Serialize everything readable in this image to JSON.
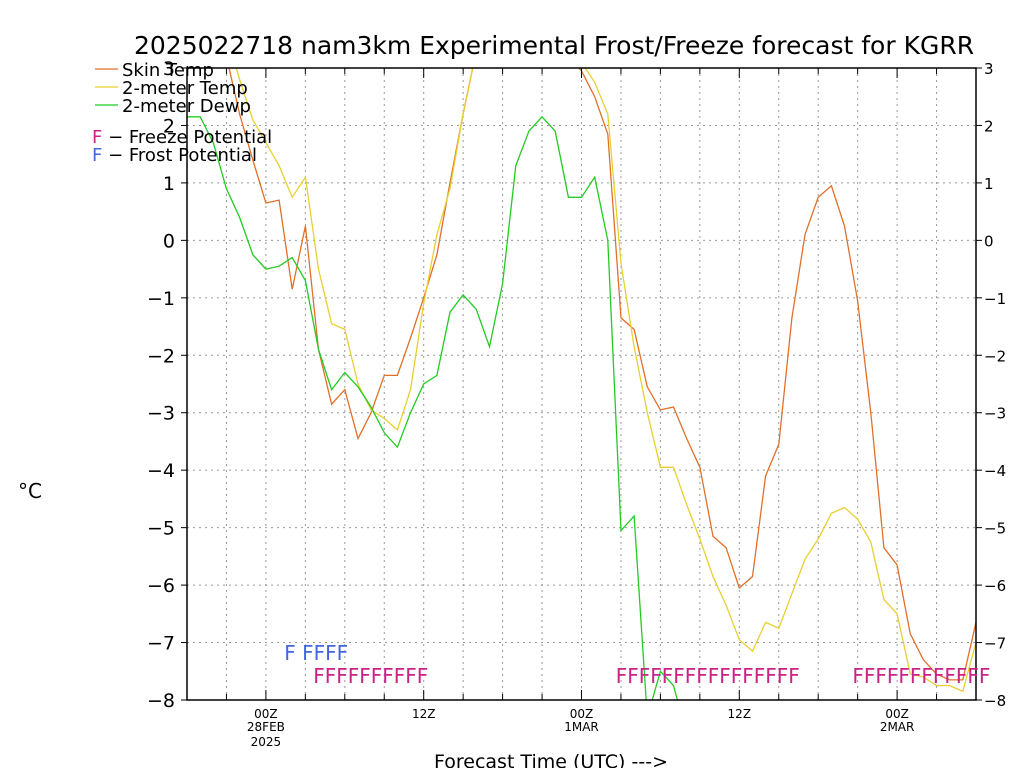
{
  "chart_data": {
    "type": "line",
    "title": "2025022718 nam3km Experimental Frost/Freeze forecast for KGRR",
    "xlabel": "Forecast Time (UTC) --->",
    "ylabel": "°C",
    "ylim": [
      -8,
      3
    ],
    "xlim": [
      -6,
      54
    ],
    "yticks": [
      -8,
      -7,
      -6,
      -5,
      -4,
      -3,
      -2,
      -1,
      0,
      1,
      2,
      3
    ],
    "xticks": [
      {
        "x": 0,
        "label": "00Z",
        "sublabel": "28FEB",
        "sublabel2": "2025"
      },
      {
        "x": 12,
        "label": "12Z"
      },
      {
        "x": 24,
        "label": "00Z",
        "sublabel": "1MAR"
      },
      {
        "x": 36,
        "label": "12Z"
      },
      {
        "x": 48,
        "label": "00Z",
        "sublabel": "2MAR"
      }
    ],
    "grid": true,
    "legend_position": "top-left",
    "series": [
      {
        "name": "Skin Temp",
        "color": "#e0702a",
        "points": [
          [
            -6,
            3.6
          ],
          [
            -5,
            3.2
          ],
          [
            -4,
            3.4
          ],
          [
            -3,
            3.2
          ],
          [
            -2,
            2.2
          ],
          [
            -1,
            1.4
          ],
          [
            0,
            0.65
          ],
          [
            1,
            0.7
          ],
          [
            2,
            -0.85
          ],
          [
            3,
            0.25
          ],
          [
            4,
            -1.9
          ],
          [
            5,
            -2.85
          ],
          [
            6,
            -2.6
          ],
          [
            7,
            -3.45
          ],
          [
            8,
            -3.0
          ],
          [
            9,
            -2.35
          ],
          [
            10,
            -2.35
          ],
          [
            11,
            -1.7
          ],
          [
            12,
            -1.0
          ],
          [
            13,
            -0.25
          ],
          [
            14,
            1.0
          ],
          [
            15,
            2.2
          ],
          [
            16,
            3.3
          ],
          [
            17,
            3.8
          ],
          [
            18,
            3.5
          ],
          [
            19,
            3.4
          ],
          [
            20,
            3.5
          ],
          [
            21,
            3.6
          ],
          [
            22,
            3.4
          ],
          [
            23,
            3.2
          ],
          [
            24,
            2.95
          ],
          [
            25,
            2.5
          ],
          [
            26,
            1.85
          ],
          [
            27,
            -1.35
          ],
          [
            28,
            -1.55
          ],
          [
            29,
            -2.55
          ],
          [
            30,
            -2.95
          ],
          [
            31,
            -2.9
          ],
          [
            32,
            -3.45
          ],
          [
            33,
            -3.95
          ],
          [
            34,
            -5.15
          ],
          [
            35,
            -5.35
          ],
          [
            36,
            -6.05
          ],
          [
            37,
            -5.85
          ],
          [
            38,
            -4.1
          ],
          [
            39,
            -3.55
          ],
          [
            40,
            -1.35
          ],
          [
            41,
            0.1
          ],
          [
            42,
            0.75
          ],
          [
            43,
            0.95
          ],
          [
            44,
            0.25
          ],
          [
            45,
            -1.05
          ],
          [
            46,
            -3.0
          ],
          [
            47,
            -5.35
          ],
          [
            48,
            -5.65
          ],
          [
            49,
            -6.85
          ],
          [
            50,
            -7.3
          ],
          [
            51,
            -7.55
          ],
          [
            52,
            -7.65
          ],
          [
            53,
            -7.65
          ],
          [
            54,
            -6.65
          ]
        ]
      },
      {
        "name": "2-meter Temp",
        "color": "#e8d030",
        "points": [
          [
            -6,
            3.5
          ],
          [
            -5,
            3.3
          ],
          [
            -4,
            3.5
          ],
          [
            -3,
            3.6
          ],
          [
            -2,
            2.8
          ],
          [
            -1,
            2.1
          ],
          [
            0,
            1.7
          ],
          [
            1,
            1.3
          ],
          [
            2,
            0.75
          ],
          [
            3,
            1.1
          ],
          [
            4,
            -0.5
          ],
          [
            5,
            -1.45
          ],
          [
            6,
            -1.55
          ],
          [
            7,
            -2.5
          ],
          [
            8,
            -2.95
          ],
          [
            9,
            -3.1
          ],
          [
            10,
            -3.3
          ],
          [
            11,
            -2.6
          ],
          [
            12,
            -1.1
          ],
          [
            13,
            0.1
          ],
          [
            14,
            0.9
          ],
          [
            15,
            2.2
          ],
          [
            16,
            3.3
          ],
          [
            17,
            3.7
          ],
          [
            18,
            3.5
          ],
          [
            19,
            3.5
          ],
          [
            20,
            3.4
          ],
          [
            21,
            3.4
          ],
          [
            22,
            3.3
          ],
          [
            23,
            3.2
          ],
          [
            24,
            3.1
          ],
          [
            25,
            2.75
          ],
          [
            26,
            2.2
          ],
          [
            27,
            -0.4
          ],
          [
            28,
            -1.85
          ],
          [
            29,
            -3.0
          ],
          [
            30,
            -3.95
          ],
          [
            31,
            -3.95
          ],
          [
            32,
            -4.6
          ],
          [
            33,
            -5.2
          ],
          [
            34,
            -5.85
          ],
          [
            35,
            -6.35
          ],
          [
            36,
            -6.95
          ],
          [
            37,
            -7.15
          ],
          [
            38,
            -6.65
          ],
          [
            39,
            -6.75
          ],
          [
            40,
            -6.15
          ],
          [
            41,
            -5.55
          ],
          [
            42,
            -5.2
          ],
          [
            43,
            -4.75
          ],
          [
            44,
            -4.65
          ],
          [
            45,
            -4.85
          ],
          [
            46,
            -5.25
          ],
          [
            47,
            -6.25
          ],
          [
            48,
            -6.5
          ],
          [
            49,
            -7.55
          ],
          [
            50,
            -7.6
          ],
          [
            51,
            -7.75
          ],
          [
            52,
            -7.75
          ],
          [
            53,
            -7.85
          ],
          [
            54,
            -7.0
          ]
        ]
      },
      {
        "name": "2-meter Dewp",
        "color": "#22cc22",
        "points": [
          [
            -6,
            2.15
          ],
          [
            -5,
            2.15
          ],
          [
            -4,
            1.7
          ],
          [
            -3,
            0.9
          ],
          [
            -2,
            0.4
          ],
          [
            -1,
            -0.25
          ],
          [
            0,
            -0.5
          ],
          [
            1,
            -0.45
          ],
          [
            2,
            -0.3
          ],
          [
            3,
            -0.7
          ],
          [
            4,
            -1.9
          ],
          [
            5,
            -2.6
          ],
          [
            6,
            -2.3
          ],
          [
            7,
            -2.55
          ],
          [
            8,
            -2.9
          ],
          [
            9,
            -3.35
          ],
          [
            10,
            -3.6
          ],
          [
            11,
            -3.0
          ],
          [
            12,
            -2.5
          ],
          [
            13,
            -2.35
          ],
          [
            14,
            -1.25
          ],
          [
            15,
            -0.95
          ],
          [
            16,
            -1.2
          ],
          [
            17,
            -1.85
          ],
          [
            18,
            -0.75
          ],
          [
            19,
            1.3
          ],
          [
            20,
            1.9
          ],
          [
            21,
            2.15
          ],
          [
            22,
            1.9
          ],
          [
            23,
            0.75
          ],
          [
            24,
            0.75
          ],
          [
            25,
            1.1
          ],
          [
            26,
            0.0
          ],
          [
            27,
            -5.05
          ],
          [
            28,
            -4.8
          ],
          [
            29,
            -8.3
          ],
          [
            30,
            -7.5
          ],
          [
            31,
            -7.75
          ],
          [
            32,
            -8.6
          ]
        ]
      }
    ],
    "legend": {
      "freeze_label": "F − Freeze Potential",
      "frost_label": "F − Frost Potential",
      "freeze_color": "#cc2288",
      "frost_color": "#4466dd"
    },
    "frost_markers": {
      "text": "F  FFFF",
      "x_start": 1.4,
      "y": -7.15
    },
    "freeze_markers": [
      {
        "text": "FFFFFFFFFF",
        "x_start": 3.6,
        "y": -7.55
      },
      {
        "text": "FFFFFFFFFFFFFFFF",
        "x_start": 26.6,
        "y": -7.55
      },
      {
        "text": "FFFFFFFFFFFF",
        "x_start": 44.6,
        "y": -7.55
      }
    ]
  }
}
